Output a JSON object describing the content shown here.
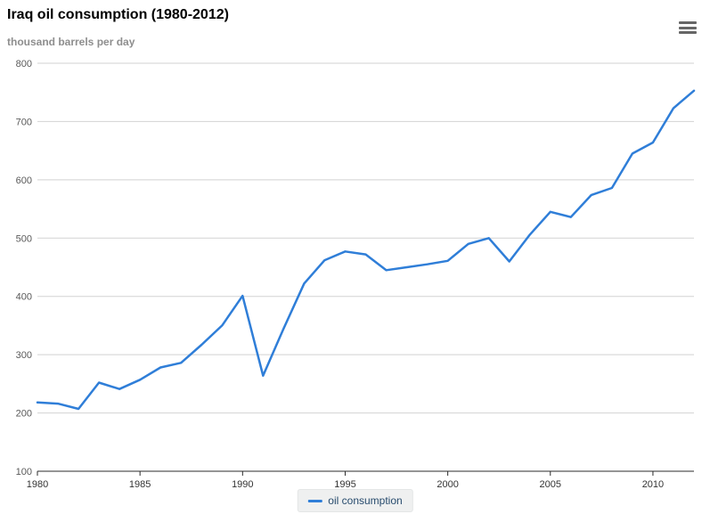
{
  "header": {
    "title": "Iraq oil consumption (1980-2012)",
    "subtitle": "thousand barrels per day"
  },
  "menu": {
    "icon": "hamburger-menu-icon"
  },
  "legend": {
    "label": "oil consumption"
  },
  "colors": {
    "series": "#2f7ed8",
    "grid": "#d2d2d2",
    "axis_line": "#2b2b2b",
    "y_tick_label": "#5a5a5a",
    "x_tick_label": "#333333",
    "legend_text": "#274b6d",
    "legend_bg": "#eff0f0",
    "menu_icon": "#666666",
    "subtitle": "#8e8e8e",
    "title": "#000000"
  },
  "chart_data": {
    "type": "line",
    "title": "Iraq oil consumption (1980-2012)",
    "subtitle": "thousand barrels per day",
    "xlabel": "",
    "ylabel": "thousand barrels per day",
    "x": [
      1980,
      1981,
      1982,
      1983,
      1984,
      1985,
      1986,
      1987,
      1988,
      1989,
      1990,
      1991,
      1992,
      1993,
      1994,
      1995,
      1996,
      1997,
      1998,
      1999,
      2000,
      2001,
      2002,
      2003,
      2004,
      2005,
      2006,
      2007,
      2008,
      2009,
      2010,
      2011,
      2012
    ],
    "series": [
      {
        "name": "oil consumption",
        "color": "#2f7ed8",
        "values": [
          218,
          216,
          207,
          252,
          241,
          257,
          278,
          286,
          317,
          350,
          401,
          264,
          345,
          422,
          462,
          477,
          472,
          445,
          450,
          455,
          461,
          490,
          500,
          460,
          506,
          545,
          536,
          574,
          586,
          645,
          664,
          723,
          753
        ]
      }
    ],
    "ylim": [
      100,
      800
    ],
    "yticks": [
      100,
      200,
      300,
      400,
      500,
      600,
      700,
      800
    ],
    "xticks": [
      1980,
      1985,
      1990,
      1995,
      2000,
      2005,
      2010
    ],
    "grid": true,
    "legend_position": "bottom-center"
  }
}
